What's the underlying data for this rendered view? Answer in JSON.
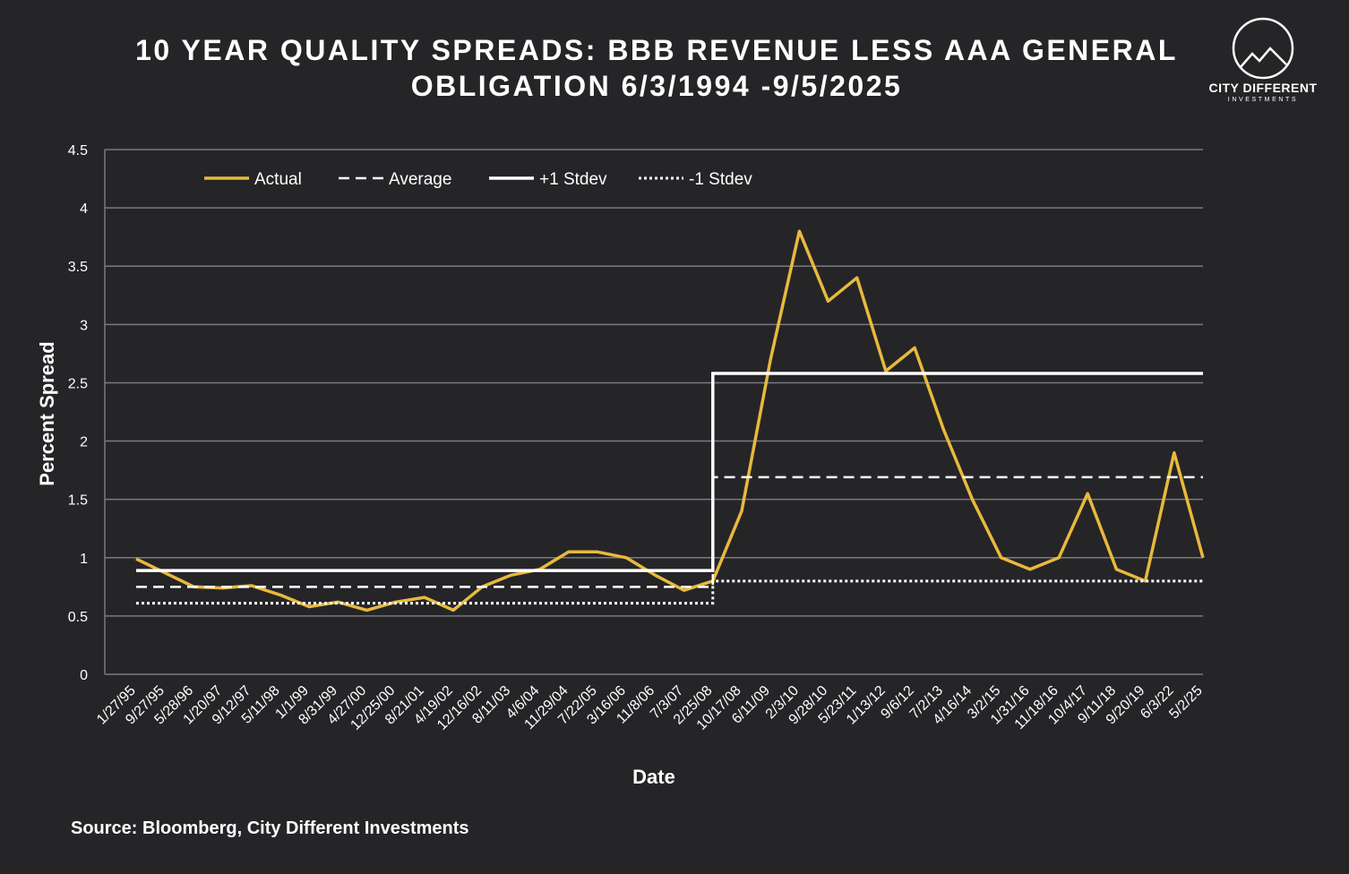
{
  "header": {
    "title_line1": "10 YEAR QUALITY SPREADS: BBB REVENUE LESS AAA GENERAL",
    "title_line2": "OBLIGATION 6/3/1994 -9/5/2025"
  },
  "logo": {
    "name": "CITY DIFFERENT",
    "sub": "INVESTMENTS"
  },
  "footer": {
    "source": "Source: Bloomberg, City Different Investments"
  },
  "colors": {
    "actual": "#e8b93c",
    "lines": "#ffffff",
    "grid": "#7a7a7e",
    "background": "#252528"
  },
  "chart_data": {
    "type": "line",
    "title": "10 YEAR QUALITY SPREADS: BBB REVENUE LESS AAA GENERAL OBLIGATION 6/3/1994 -9/5/2025",
    "xlabel": "Date",
    "ylabel": "Percent Spread",
    "ylim": [
      0,
      4.5
    ],
    "y_ticks": [
      "0",
      "0.5",
      "1",
      "1.5",
      "2",
      "2.5",
      "3",
      "3.5",
      "4",
      "4.5"
    ],
    "x_ticks": [
      "1/27/95",
      "9/27/95",
      "5/28/96",
      "1/20/97",
      "9/12/97",
      "5/11/98",
      "1/1/99",
      "8/31/99",
      "4/27/00",
      "12/25/00",
      "8/21/01",
      "4/19/02",
      "12/16/02",
      "8/11/03",
      "4/6/04",
      "11/29/04",
      "7/22/05",
      "3/16/06",
      "11/8/06",
      "7/3/07",
      "2/25/08",
      "10/17/08",
      "6/11/09",
      "2/3/10",
      "9/28/10",
      "5/23/11",
      "1/13/12",
      "9/6/12",
      "7/2/13",
      "4/16/14",
      "3/2/15",
      "1/31/16",
      "11/18/16",
      "10/4/17",
      "9/11/18",
      "9/20/19",
      "6/3/22",
      "5/2/25"
    ],
    "legend": {
      "position": "top-left",
      "entries": [
        "Actual",
        "Average",
        "+1 Stdev",
        "-1 Stdev"
      ]
    },
    "grid": true,
    "series": [
      {
        "name": "Actual",
        "points": [
          [
            "1/27/95",
            0.99
          ],
          [
            "5/28/96",
            0.75
          ],
          [
            "1/20/97",
            0.74
          ],
          [
            "9/12/97",
            0.76
          ],
          [
            "5/11/98",
            0.68
          ],
          [
            "1/1/99",
            0.58
          ],
          [
            "8/31/99",
            0.62
          ],
          [
            "4/27/00",
            0.55
          ],
          [
            "12/25/00",
            0.62
          ],
          [
            "8/21/01",
            0.66
          ],
          [
            "4/19/02",
            0.55
          ],
          [
            "12/16/02",
            0.75
          ],
          [
            "8/11/03",
            0.85
          ],
          [
            "4/6/04",
            0.9
          ],
          [
            "11/29/04",
            1.05
          ],
          [
            "7/22/05",
            1.05
          ],
          [
            "3/16/06",
            1.0
          ],
          [
            "11/8/06",
            0.85
          ],
          [
            "7/3/07",
            0.72
          ],
          [
            "2/25/08",
            0.8
          ],
          [
            "10/17/08",
            1.4
          ],
          [
            "6/11/09",
            2.7
          ],
          [
            "2/3/10",
            3.8
          ],
          [
            "9/28/10",
            3.2
          ],
          [
            "5/23/11",
            3.4
          ],
          [
            "1/13/12",
            2.6
          ],
          [
            "9/6/12",
            2.8
          ],
          [
            "7/2/13",
            2.1
          ],
          [
            "4/16/14",
            1.5
          ],
          [
            "3/2/15",
            1.0
          ],
          [
            "1/31/16",
            0.9
          ],
          [
            "11/18/16",
            1.0
          ],
          [
            "10/4/17",
            1.55
          ],
          [
            "9/11/18",
            0.9
          ],
          [
            "9/20/19",
            0.8
          ],
          [
            "6/3/22",
            1.9
          ],
          [
            "5/2/25",
            1.0
          ]
        ]
      },
      {
        "name": "Average",
        "segments": [
          {
            "from": "6/3/94",
            "to": "2/25/08",
            "value": 0.75
          },
          {
            "from": "2/25/08",
            "to": "9/5/25",
            "value": 1.69
          }
        ]
      },
      {
        "name": "+1 Stdev",
        "segments": [
          {
            "from": "6/3/94",
            "to": "2/25/08",
            "value": 0.89
          },
          {
            "from": "2/25/08",
            "to": "9/5/25",
            "value": 2.58
          }
        ]
      },
      {
        "name": "-1 Stdev",
        "segments": [
          {
            "from": "6/3/94",
            "to": "2/25/08",
            "value": 0.61
          },
          {
            "from": "2/25/08",
            "to": "9/5/25",
            "value": 0.8
          }
        ]
      }
    ]
  }
}
